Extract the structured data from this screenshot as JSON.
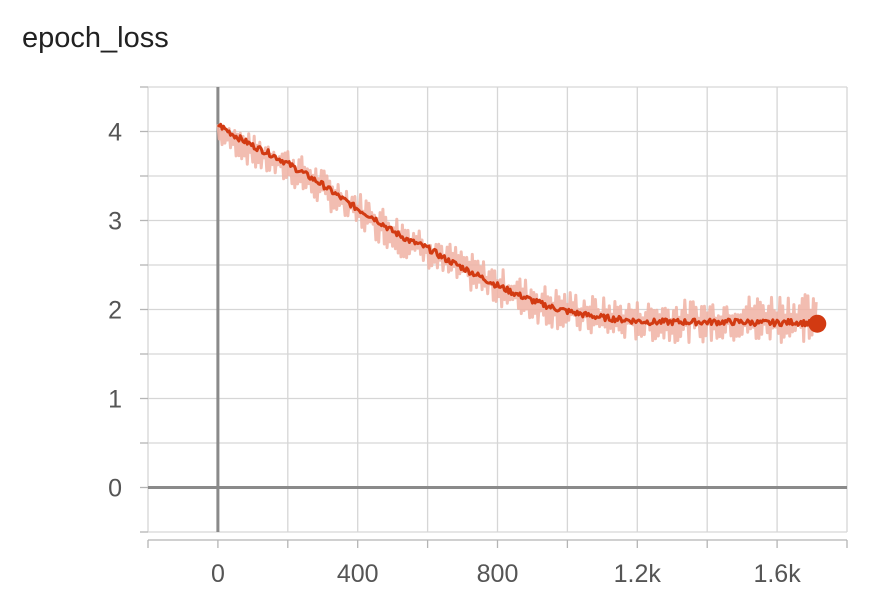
{
  "chart_data": {
    "type": "line",
    "title": "epoch_loss",
    "xlabel": "",
    "ylabel": "",
    "xlim": [
      -200,
      1800
    ],
    "ylim": [
      -0.5,
      4.5
    ],
    "x_ticks": [
      0,
      400,
      800,
      1200,
      1600
    ],
    "x_tick_labels": [
      "0",
      "400",
      "800",
      "1.2k",
      "1.6k"
    ],
    "y_ticks": [
      0,
      1,
      2,
      3,
      4
    ],
    "y_tick_labels": [
      "0",
      "1",
      "2",
      "3",
      "4"
    ],
    "grid": true,
    "series": [
      {
        "name": "",
        "color": "#d23a12",
        "raw_color": "#f0b2a3",
        "smoothed": [
          [
            0,
            4.08
          ],
          [
            50,
            3.95
          ],
          [
            100,
            3.84
          ],
          [
            150,
            3.75
          ],
          [
            200,
            3.64
          ],
          [
            250,
            3.52
          ],
          [
            300,
            3.4
          ],
          [
            350,
            3.26
          ],
          [
            400,
            3.13
          ],
          [
            450,
            3.02
          ],
          [
            500,
            2.88
          ],
          [
            550,
            2.77
          ],
          [
            600,
            2.69
          ],
          [
            650,
            2.57
          ],
          [
            700,
            2.47
          ],
          [
            750,
            2.37
          ],
          [
            800,
            2.27
          ],
          [
            850,
            2.18
          ],
          [
            900,
            2.1
          ],
          [
            950,
            2.03
          ],
          [
            1000,
            1.98
          ],
          [
            1050,
            1.94
          ],
          [
            1100,
            1.91
          ],
          [
            1150,
            1.89
          ],
          [
            1200,
            1.87
          ],
          [
            1250,
            1.86
          ],
          [
            1300,
            1.86
          ],
          [
            1350,
            1.86
          ],
          [
            1400,
            1.86
          ],
          [
            1450,
            1.86
          ],
          [
            1500,
            1.86
          ],
          [
            1550,
            1.85
          ],
          [
            1600,
            1.85
          ],
          [
            1650,
            1.86
          ],
          [
            1700,
            1.84
          ],
          [
            1715,
            1.84
          ]
        ],
        "raw_band": [
          [
            0,
            3.85,
            4.15
          ],
          [
            50,
            3.72,
            4.06
          ],
          [
            100,
            3.58,
            3.96
          ],
          [
            150,
            3.5,
            3.9
          ],
          [
            200,
            3.4,
            3.82
          ],
          [
            250,
            3.28,
            3.7
          ],
          [
            300,
            3.16,
            3.58
          ],
          [
            350,
            3.02,
            3.45
          ],
          [
            400,
            2.9,
            3.33
          ],
          [
            450,
            2.78,
            3.22
          ],
          [
            500,
            2.64,
            3.08
          ],
          [
            550,
            2.54,
            2.98
          ],
          [
            600,
            2.46,
            2.9
          ],
          [
            650,
            2.34,
            2.78
          ],
          [
            700,
            2.25,
            2.68
          ],
          [
            750,
            2.15,
            2.58
          ],
          [
            800,
            2.05,
            2.48
          ],
          [
            850,
            1.95,
            2.4
          ],
          [
            900,
            1.86,
            2.32
          ],
          [
            950,
            1.8,
            2.26
          ],
          [
            1000,
            1.75,
            2.22
          ],
          [
            1050,
            1.72,
            2.18
          ],
          [
            1100,
            1.68,
            2.14
          ],
          [
            1150,
            1.66,
            2.12
          ],
          [
            1200,
            1.65,
            2.1
          ],
          [
            1250,
            1.64,
            2.1
          ],
          [
            1300,
            1.63,
            2.1
          ],
          [
            1350,
            1.63,
            2.12
          ],
          [
            1400,
            1.62,
            2.12
          ],
          [
            1450,
            1.62,
            2.14
          ],
          [
            1500,
            1.62,
            2.16
          ],
          [
            1550,
            1.61,
            2.18
          ],
          [
            1600,
            1.61,
            2.2
          ],
          [
            1650,
            1.62,
            2.2
          ],
          [
            1700,
            1.62,
            2.16
          ],
          [
            1715,
            1.64,
            2.1
          ]
        ],
        "last_point": [
          1715,
          1.84
        ]
      }
    ]
  }
}
